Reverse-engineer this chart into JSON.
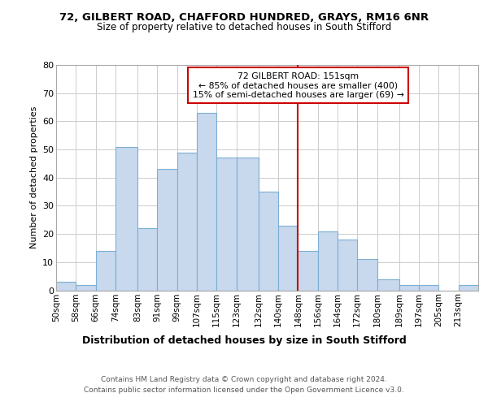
{
  "title1": "72, GILBERT ROAD, CHAFFORD HUNDRED, GRAYS, RM16 6NR",
  "title2": "Size of property relative to detached houses in South Stifford",
  "xlabel": "Distribution of detached houses by size in South Stifford",
  "ylabel": "Number of detached properties",
  "bin_labels": [
    "50sqm",
    "58sqm",
    "66sqm",
    "74sqm",
    "83sqm",
    "91sqm",
    "99sqm",
    "107sqm",
    "115sqm",
    "123sqm",
    "132sqm",
    "140sqm",
    "148sqm",
    "156sqm",
    "164sqm",
    "172sqm",
    "180sqm",
    "189sqm",
    "197sqm",
    "205sqm",
    "213sqm"
  ],
  "bar_heights": [
    3,
    2,
    14,
    51,
    22,
    43,
    49,
    63,
    47,
    47,
    35,
    23,
    14,
    21,
    18,
    11,
    4,
    2,
    2,
    0,
    2
  ],
  "bar_color": "#c8d8ed",
  "bar_edge_color": "#7bafd4",
  "grid_color": "#cccccc",
  "vline_x_index": 12,
  "vline_color": "#cc0000",
  "annotation_title": "72 GILBERT ROAD: 151sqm",
  "annotation_line1": "← 85% of detached houses are smaller (400)",
  "annotation_line2": "15% of semi-detached houses are larger (69) →",
  "annotation_box_color": "#ffffff",
  "annotation_border_color": "#cc0000",
  "footer1": "Contains HM Land Registry data © Crown copyright and database right 2024.",
  "footer2": "Contains public sector information licensed under the Open Government Licence v3.0.",
  "ylim": [
    0,
    80
  ],
  "bin_edges": [
    50,
    58,
    66,
    74,
    83,
    91,
    99,
    107,
    115,
    123,
    132,
    140,
    148,
    156,
    164,
    172,
    180,
    189,
    197,
    205,
    213,
    221
  ]
}
